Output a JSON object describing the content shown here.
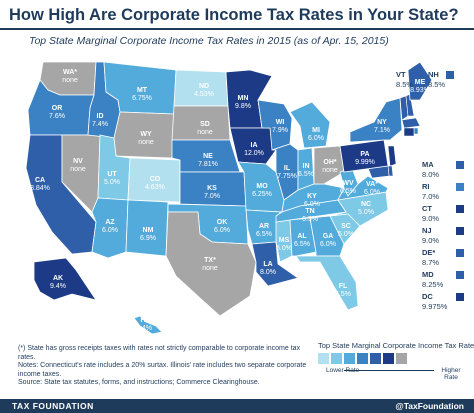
{
  "header": {
    "title": "How High Are Corporate Income Tax Rates in Your State?",
    "subtitle": "Top State Marginal Corporate Income Tax Rates in 2015 (as of Apr. 15, 2015)"
  },
  "colors": {
    "none": "#a6a6a6",
    "lowest": "#b3e0ee",
    "low": "#7ec9e6",
    "mid_low": "#52abdb",
    "mid": "#3b82c4",
    "mid_high": "#2f5fa9",
    "highest": "#1c3a86",
    "brand": "#1f3b5c"
  },
  "states": [
    {
      "id": "WA",
      "label": "WA*",
      "value": "none"
    },
    {
      "id": "OR",
      "label": "OR",
      "value": "7.6%"
    },
    {
      "id": "CA",
      "label": "CA",
      "value": "8.84%"
    },
    {
      "id": "NV",
      "label": "NV",
      "value": "none"
    },
    {
      "id": "ID",
      "label": "ID",
      "value": "7.4%"
    },
    {
      "id": "MT",
      "label": "MT",
      "value": "6.75%"
    },
    {
      "id": "WY",
      "label": "WY",
      "value": "none"
    },
    {
      "id": "UT",
      "label": "UT",
      "value": "5.0%"
    },
    {
      "id": "AZ",
      "label": "AZ",
      "value": "6.0%"
    },
    {
      "id": "CO",
      "label": "CO",
      "value": "4.63%"
    },
    {
      "id": "NM",
      "label": "NM",
      "value": "6.9%"
    },
    {
      "id": "ND",
      "label": "ND",
      "value": "4.53%"
    },
    {
      "id": "SD",
      "label": "SD",
      "value": "none"
    },
    {
      "id": "NE",
      "label": "NE",
      "value": "7.81%"
    },
    {
      "id": "KS",
      "label": "KS",
      "value": "7.0%"
    },
    {
      "id": "OK",
      "label": "OK",
      "value": "6.0%"
    },
    {
      "id": "TX",
      "label": "TX*",
      "value": "none"
    },
    {
      "id": "MN",
      "label": "MN",
      "value": "9.8%"
    },
    {
      "id": "IA",
      "label": "IA",
      "value": "12.0%"
    },
    {
      "id": "MO",
      "label": "MO",
      "value": "6.25%"
    },
    {
      "id": "AR",
      "label": "AR",
      "value": "6.5%"
    },
    {
      "id": "LA",
      "label": "LA",
      "value": "8.0%"
    },
    {
      "id": "WI",
      "label": "WI",
      "value": "7.9%"
    },
    {
      "id": "IL",
      "label": "IL",
      "value": "7.75%"
    },
    {
      "id": "MS",
      "label": "MS",
      "value": "5.0%"
    },
    {
      "id": "MI",
      "label": "MI",
      "value": "6.0%"
    },
    {
      "id": "IN",
      "label": "IN",
      "value": "6.5%"
    },
    {
      "id": "KY",
      "label": "KY",
      "value": "6.0%"
    },
    {
      "id": "TN",
      "label": "TN",
      "value": "6.5%"
    },
    {
      "id": "AL",
      "label": "AL",
      "value": "6.5%"
    },
    {
      "id": "OH",
      "label": "OH*",
      "value": "none"
    },
    {
      "id": "WV",
      "label": "WV",
      "value": "6.5%"
    },
    {
      "id": "GA",
      "label": "GA",
      "value": "6.0%"
    },
    {
      "id": "FL",
      "label": "FL",
      "value": "5.5%"
    },
    {
      "id": "SC",
      "label": "SC",
      "value": "5.0%"
    },
    {
      "id": "NC",
      "label": "NC",
      "value": "5.0%"
    },
    {
      "id": "VA",
      "label": "VA*",
      "value": "6.0%"
    },
    {
      "id": "PA",
      "label": "PA",
      "value": "9.99%"
    },
    {
      "id": "NY",
      "label": "NY",
      "value": "7.1%"
    },
    {
      "id": "ME",
      "label": "ME",
      "value": "8.93%"
    },
    {
      "id": "AK",
      "label": "AK",
      "value": "9.4%"
    },
    {
      "id": "HI",
      "label": "HI",
      "value": "6.4%"
    }
  ],
  "callouts": [
    {
      "id": "VT",
      "label": "VT",
      "value": "8.5%",
      "tier": "mid_high"
    },
    {
      "id": "NH",
      "label": "NH",
      "value": "8.5%",
      "tier": "mid_high"
    },
    {
      "id": "MA",
      "label": "MA",
      "value": "8.0%",
      "tier": "mid_high"
    },
    {
      "id": "RI",
      "label": "RI",
      "value": "7.0%",
      "tier": "mid"
    },
    {
      "id": "CT",
      "label": "CT",
      "value": "9.0%",
      "tier": "highest"
    },
    {
      "id": "NJ",
      "label": "NJ",
      "value": "9.0%",
      "tier": "highest"
    },
    {
      "id": "DE",
      "label": "DE*",
      "value": "8.7%",
      "tier": "mid_high"
    },
    {
      "id": "MD",
      "label": "MD",
      "value": "8.25%",
      "tier": "mid_high"
    },
    {
      "id": "DC",
      "label": "DC",
      "value": "9.975%",
      "tier": "highest"
    }
  ],
  "legend": {
    "title": "Top State Marginal Corporate Income Tax Rate",
    "lower": "Lower Rate",
    "higher": "Higher Rate",
    "tiers": [
      "lowest",
      "low",
      "mid_low",
      "mid",
      "mid_high",
      "highest",
      "none"
    ]
  },
  "notes": {
    "line1": "(*) State has gross receipts taxes with rates not strictly comparable to corporate income tax rates.",
    "line2": "Notes: Connecticut's rate includes a 20% surtax. Illinois' rate includes two separate corporate income taxes.",
    "line3": "Source: State tax statutes, forms, and instructions; Commerce Clearinghouse."
  },
  "footer": {
    "left": "TAX FOUNDATION",
    "right": "@TaxFoundation"
  }
}
